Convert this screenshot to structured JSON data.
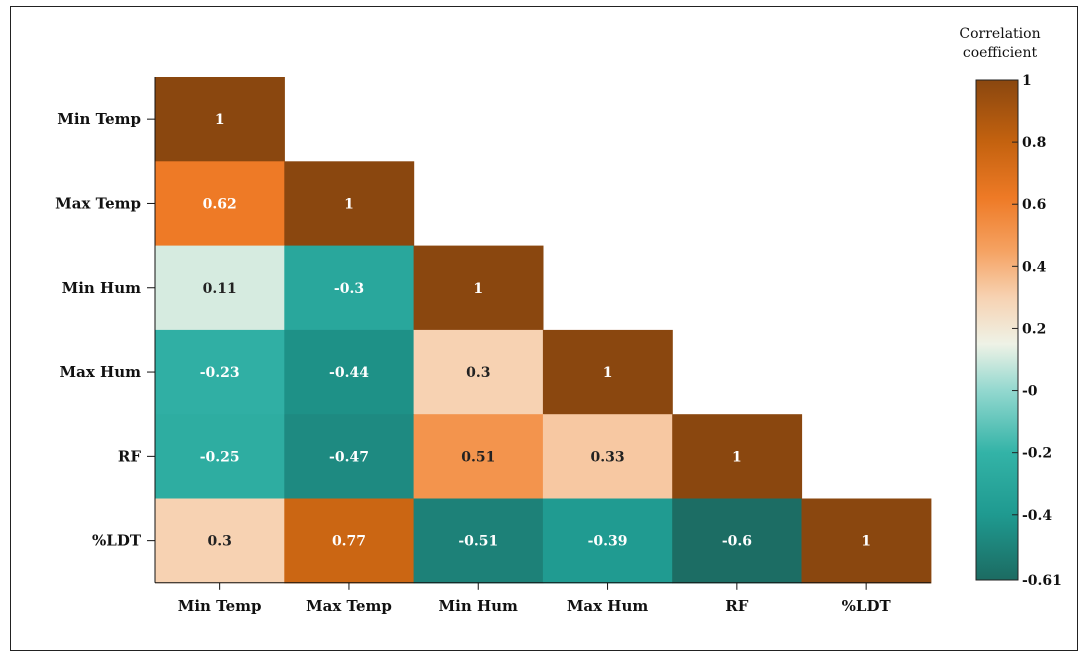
{
  "chart_data": {
    "type": "heatmap",
    "title": "",
    "xlabel": "",
    "ylabel": "",
    "rows": [
      "Min Temp",
      "Max Temp",
      "Min Hum",
      "Max Hum",
      "RF",
      "%LDT"
    ],
    "columns": [
      "Min Temp",
      "Max Temp",
      "Min Hum",
      "Max Hum",
      "RF",
      "%LDT"
    ],
    "values": [
      [
        1,
        null,
        null,
        null,
        null,
        null
      ],
      [
        0.62,
        1,
        null,
        null,
        null,
        null
      ],
      [
        0.11,
        -0.3,
        1,
        null,
        null,
        null
      ],
      [
        -0.23,
        -0.44,
        0.3,
        1,
        null,
        null
      ],
      [
        -0.25,
        -0.47,
        0.51,
        0.33,
        1,
        null
      ],
      [
        0.3,
        0.77,
        -0.51,
        -0.39,
        -0.6,
        1
      ]
    ],
    "colorbar": {
      "title_lines": [
        "Correlation",
        "coefficient"
      ],
      "range": [
        -0.61,
        1
      ],
      "tick_values": [
        1,
        0.8,
        0.6,
        0.4,
        0.2,
        0,
        -0.2,
        -0.4,
        -0.61
      ],
      "tick_labels": [
        "1",
        "0.8",
        "0.6",
        "0.4",
        "0.2",
        "-0",
        "-0.2",
        "-0.4",
        "-0.61"
      ],
      "colormap": [
        {
          "v": -0.61,
          "color": "#1c6b62"
        },
        {
          "v": -0.4,
          "color": "#1f9a90"
        },
        {
          "v": -0.2,
          "color": "#33b3a7"
        },
        {
          "v": 0.0,
          "color": "#93d8cf"
        },
        {
          "v": 0.15,
          "color": "#eef2e6"
        },
        {
          "v": 0.3,
          "color": "#f7d2b2"
        },
        {
          "v": 0.45,
          "color": "#f5a262"
        },
        {
          "v": 0.62,
          "color": "#ee7a26"
        },
        {
          "v": 0.8,
          "color": "#c4620f"
        },
        {
          "v": 1.0,
          "color": "#8a470f"
        }
      ]
    },
    "legend_position": "right"
  }
}
